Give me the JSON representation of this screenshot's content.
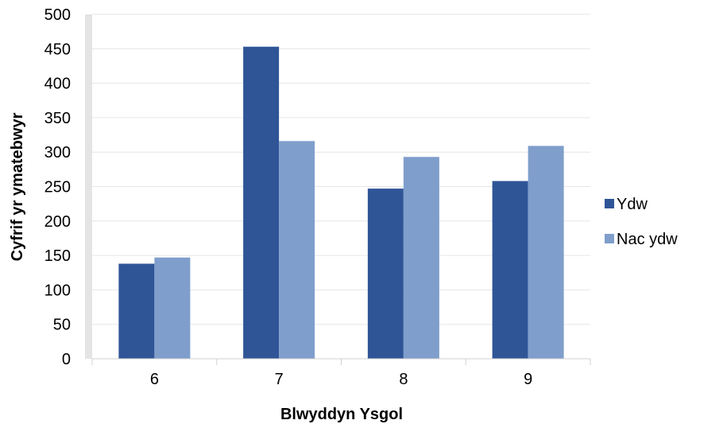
{
  "chart_data": {
    "type": "bar",
    "categories": [
      "6",
      "7",
      "8",
      "9"
    ],
    "series": [
      {
        "name": "Ydw",
        "values": [
          138,
          453,
          247,
          258
        ],
        "color": "#2f5597"
      },
      {
        "name": "Nac ydw",
        "values": [
          147,
          316,
          293,
          309
        ],
        "color": "#7f9ecb"
      }
    ],
    "xlabel": "Blwyddyn Ysgol",
    "ylabel": "Cyfrif yr ymatebwyr",
    "ylim": [
      0,
      500
    ],
    "yticks": [
      0,
      50,
      100,
      150,
      200,
      250,
      300,
      350,
      400,
      450,
      500
    ],
    "grid": true,
    "legend_position": "right"
  }
}
